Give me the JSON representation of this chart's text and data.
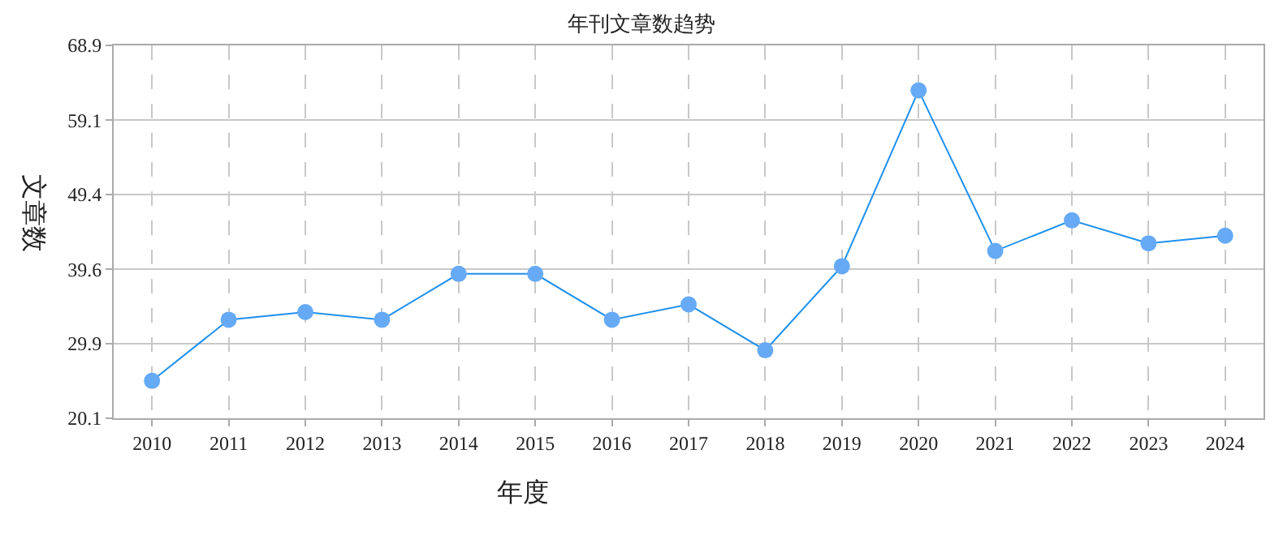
{
  "chart_data": {
    "type": "line",
    "title": "年刊文章数趋势",
    "xlabel": "年度",
    "ylabel": "文章数",
    "categories": [
      "2010",
      "2011",
      "2012",
      "2013",
      "2014",
      "2015",
      "2016",
      "2017",
      "2018",
      "2019",
      "2020",
      "2021",
      "2022",
      "2023",
      "2024"
    ],
    "series": [
      {
        "color": "#1e90ee",
        "values": [
          25,
          33,
          34,
          33,
          39,
          39,
          33,
          35,
          29,
          40,
          63,
          42,
          46,
          43,
          44
        ]
      }
    ],
    "ylim": [
      20.1,
      68.9
    ],
    "yticks": [
      20.1,
      29.9,
      39.6,
      49.4,
      59.1,
      68.9
    ],
    "grid": true,
    "marker": "circle",
    "line_style": "solid",
    "legend": false
  }
}
